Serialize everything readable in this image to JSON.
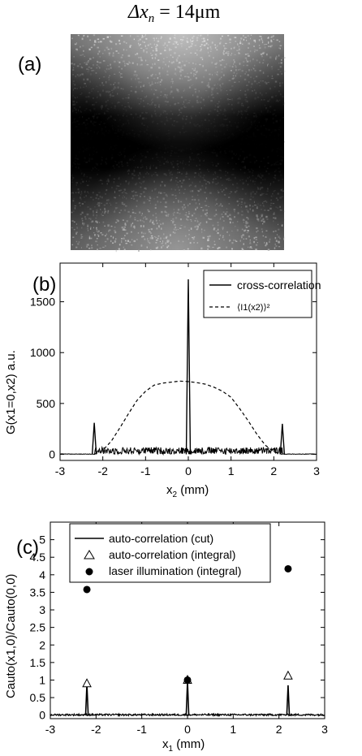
{
  "figure": {
    "header": {
      "prefix": "Δx",
      "sub": "n",
      "rest": " = 14μm"
    },
    "panel_a": {
      "label": "(a)"
    }
  },
  "chart_data": [
    {
      "panel": "(b)",
      "type": "line",
      "xlabel": {
        "main": "x",
        "sub": "2",
        "rest": " (mm)"
      },
      "ylabel": "G(x1=0,x2)  a.u.",
      "xlim": [
        -3,
        3
      ],
      "ylim": [
        -60,
        1880
      ],
      "xticks": [
        -3,
        -2,
        -1,
        0,
        1,
        2,
        3
      ],
      "yticks": [
        0,
        500,
        1000,
        1500
      ],
      "legend_position": "top-right",
      "series": [
        {
          "name": "cross-correlation",
          "style": "solid",
          "peaks": [
            {
              "x": -2.2,
              "y": 310
            },
            {
              "x": 0.0,
              "y": 1720
            },
            {
              "x": 2.2,
              "y": 300
            }
          ],
          "noise_range": [
            -2.2,
            2.2
          ],
          "noise_level": [
            0,
            70
          ]
        },
        {
          "name": "⟨I1(x2)⟩²",
          "style": "dashed",
          "x": [
            -2.2,
            -2.0,
            -1.8,
            -1.6,
            -1.4,
            -1.2,
            -1.0,
            -0.8,
            -0.6,
            -0.4,
            -0.2,
            0.0,
            0.2,
            0.4,
            0.6,
            0.8,
            1.0,
            1.2,
            1.4,
            1.6,
            1.8,
            2.0,
            2.2
          ],
          "y": [
            0,
            40,
            130,
            260,
            400,
            530,
            620,
            680,
            700,
            710,
            720,
            715,
            705,
            690,
            660,
            620,
            560,
            450,
            330,
            200,
            90,
            25,
            0
          ]
        }
      ]
    },
    {
      "panel": "(c)",
      "type": "line",
      "xlabel": {
        "main": "x",
        "sub": "1",
        "rest": " (mm)"
      },
      "ylabel": "Cauto(x1,0)/Cauto(0,0)",
      "xlim": [
        -3,
        3
      ],
      "ylim": [
        -0.1,
        5.5
      ],
      "xticks": [
        -3,
        -2,
        -1,
        0,
        1,
        2,
        3
      ],
      "yticks": [
        0,
        0.5,
        1,
        1.5,
        2,
        2.5,
        3,
        3.5,
        4,
        4.5,
        5
      ],
      "legend_position": "top-left",
      "series": [
        {
          "name": "auto-correlation (cut)",
          "style": "solid",
          "peaks": [
            {
              "x": -2.2,
              "y": 0.88
            },
            {
              "x": 0.0,
              "y": 0.97
            },
            {
              "x": 2.2,
              "y": 0.85
            }
          ]
        },
        {
          "name": "auto-correlation (integral)",
          "style": "open-triangle",
          "x": [
            -2.2,
            0.0,
            2.2
          ],
          "y": [
            0.9,
            1.0,
            1.12
          ]
        },
        {
          "name": "laser illumination (integral)",
          "style": "filled-circle",
          "x": [
            -2.2,
            0.0,
            2.2
          ],
          "y": [
            3.58,
            1.0,
            4.17
          ]
        }
      ]
    }
  ]
}
